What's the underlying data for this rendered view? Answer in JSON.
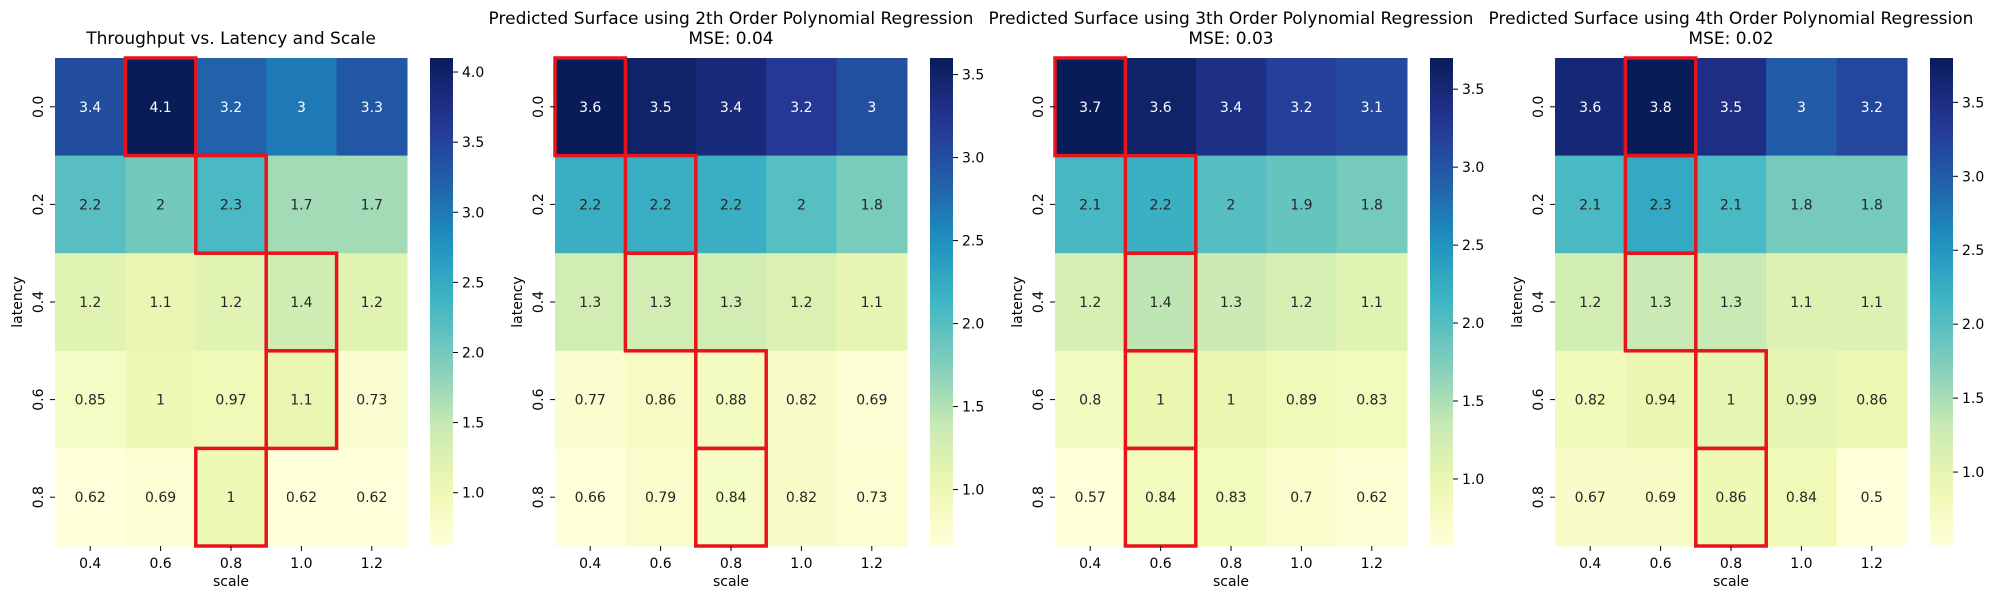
{
  "chart_data": [
    {
      "type": "heatmap",
      "title": "Throughput vs. Latency and Scale",
      "subtitle": "",
      "xlabel": "scale",
      "ylabel": "latency",
      "x": [
        "0.4",
        "0.6",
        "0.8",
        "1.0",
        "1.2"
      ],
      "y": [
        "0.0",
        "0.2",
        "0.4",
        "0.6",
        "0.8"
      ],
      "values": [
        [
          3.4,
          4.1,
          3.2,
          3,
          3.3
        ],
        [
          2.2,
          2,
          2.3,
          1.7,
          1.7
        ],
        [
          1.2,
          1.1,
          1.2,
          1.4,
          1.2
        ],
        [
          0.85,
          1,
          0.97,
          1.1,
          0.73
        ],
        [
          0.62,
          0.69,
          1,
          0.62,
          0.62
        ]
      ],
      "highlighted_cells": [
        [
          0,
          1
        ],
        [
          1,
          2
        ],
        [
          2,
          3
        ],
        [
          3,
          3
        ],
        [
          4,
          2
        ]
      ],
      "highlight_color": "#e8141b",
      "colormap": "YlGnBu",
      "color_range": [
        0.62,
        4.1
      ],
      "colorbar_ticks": [
        "1.0",
        "1.5",
        "2.0",
        "2.5",
        "3.0",
        "3.5",
        "4.0"
      ]
    },
    {
      "type": "heatmap",
      "title": "Predicted Surface using 2th Order Polynomial Regression",
      "subtitle": "MSE: 0.04",
      "xlabel": "scale",
      "ylabel": "latency",
      "x": [
        "0.4",
        "0.6",
        "0.8",
        "1.0",
        "1.2"
      ],
      "y": [
        "0.0",
        "0.2",
        "0.4",
        "0.6",
        "0.8"
      ],
      "values": [
        [
          3.6,
          3.5,
          3.4,
          3.2,
          3
        ],
        [
          2.2,
          2.2,
          2.2,
          2,
          1.8
        ],
        [
          1.3,
          1.3,
          1.3,
          1.2,
          1.1
        ],
        [
          0.77,
          0.86,
          0.88,
          0.82,
          0.69
        ],
        [
          0.66,
          0.79,
          0.84,
          0.82,
          0.73
        ]
      ],
      "highlighted_cells": [
        [
          0,
          0
        ],
        [
          1,
          1
        ],
        [
          2,
          1
        ],
        [
          3,
          2
        ],
        [
          4,
          2
        ]
      ],
      "highlight_color": "#e8141b",
      "colormap": "YlGnBu",
      "color_range": [
        0.66,
        3.6
      ],
      "colorbar_ticks": [
        "1.0",
        "1.5",
        "2.0",
        "2.5",
        "3.0",
        "3.5"
      ]
    },
    {
      "type": "heatmap",
      "title": "Predicted Surface using 3th Order Polynomial Regression",
      "subtitle": "MSE: 0.03",
      "xlabel": "scale",
      "ylabel": "latency",
      "x": [
        "0.4",
        "0.6",
        "0.8",
        "1.0",
        "1.2"
      ],
      "y": [
        "0.0",
        "0.2",
        "0.4",
        "0.6",
        "0.8"
      ],
      "values": [
        [
          3.7,
          3.6,
          3.4,
          3.2,
          3.1
        ],
        [
          2.1,
          2.2,
          2,
          1.9,
          1.8
        ],
        [
          1.2,
          1.4,
          1.3,
          1.2,
          1.1
        ],
        [
          0.8,
          1,
          1,
          0.89,
          0.83
        ],
        [
          0.57,
          0.84,
          0.83,
          0.7,
          0.62
        ]
      ],
      "highlighted_cells": [
        [
          0,
          0
        ],
        [
          1,
          1
        ],
        [
          2,
          1
        ],
        [
          3,
          1
        ],
        [
          4,
          1
        ]
      ],
      "highlight_color": "#e8141b",
      "colormap": "YlGnBu",
      "color_range": [
        0.57,
        3.7
      ],
      "colorbar_ticks": [
        "1.0",
        "1.5",
        "2.0",
        "2.5",
        "3.0",
        "3.5"
      ]
    },
    {
      "type": "heatmap",
      "title": "Predicted Surface using 4th Order Polynomial Regression",
      "subtitle": "MSE: 0.02",
      "xlabel": "scale",
      "ylabel": "latency",
      "x": [
        "0.4",
        "0.6",
        "0.8",
        "1.0",
        "1.2"
      ],
      "y": [
        "0.0",
        "0.2",
        "0.4",
        "0.6",
        "0.8"
      ],
      "values": [
        [
          3.6,
          3.8,
          3.5,
          3,
          3.2
        ],
        [
          2.1,
          2.3,
          2.1,
          1.8,
          1.8
        ],
        [
          1.2,
          1.3,
          1.3,
          1.1,
          1.1
        ],
        [
          0.82,
          0.94,
          1,
          0.99,
          0.86
        ],
        [
          0.67,
          0.69,
          0.86,
          0.84,
          0.5
        ]
      ],
      "highlighted_cells": [
        [
          0,
          1
        ],
        [
          1,
          1
        ],
        [
          2,
          1
        ],
        [
          3,
          2
        ],
        [
          4,
          2
        ]
      ],
      "highlight_color": "#e8141b",
      "colormap": "YlGnBu",
      "color_range": [
        0.5,
        3.8
      ],
      "colorbar_ticks": [
        "1.0",
        "1.5",
        "2.0",
        "2.5",
        "3.0",
        "3.5"
      ]
    }
  ]
}
